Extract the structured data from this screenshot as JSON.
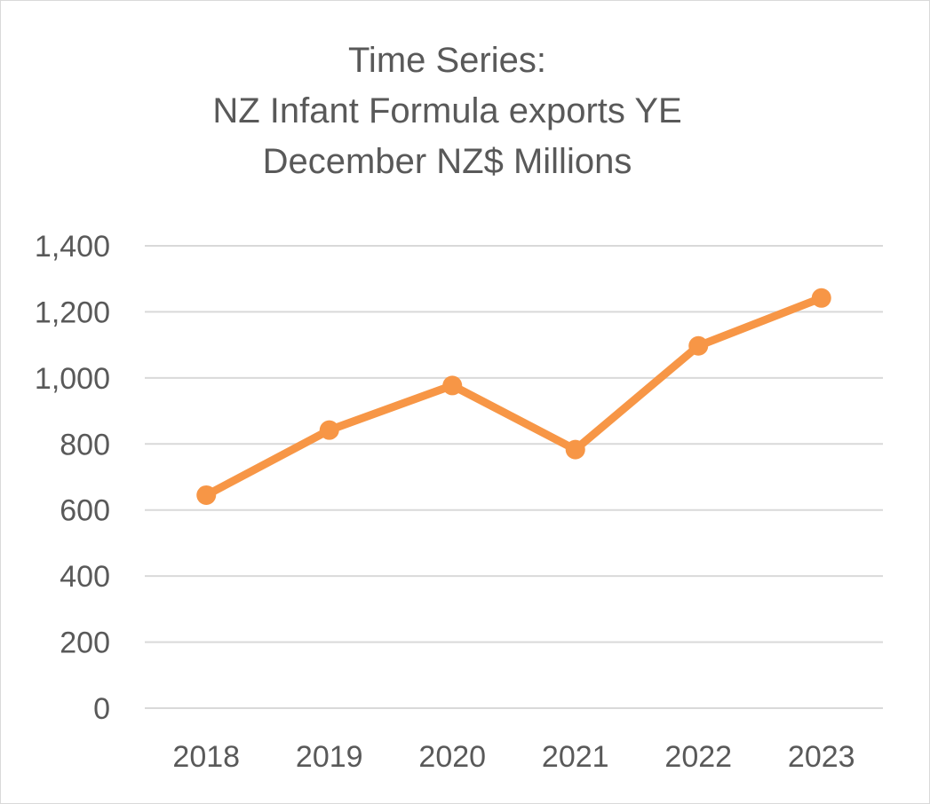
{
  "chart_data": {
    "type": "line",
    "title": [
      "Time Series:",
      "NZ Infant Formula exports YE",
      "December NZ$ Millions"
    ],
    "xlabel": "",
    "ylabel": "",
    "categories": [
      "2018",
      "2019",
      "2020",
      "2021",
      "2022",
      "2023"
    ],
    "series": [
      {
        "values": [
          645,
          842,
          977,
          783,
          1097,
          1242
        ],
        "color": "#F79646"
      }
    ],
    "ylim": [
      0,
      1400
    ],
    "yticks": [
      0,
      200,
      400,
      600,
      800,
      1000,
      1200,
      1400
    ],
    "ytick_labels": [
      "0",
      "200",
      "400",
      "600",
      "800",
      "1,000",
      "1,200",
      "1,400"
    ],
    "grid": true,
    "gridline_color": "#d9d9d9",
    "text_color": "#595959",
    "legend": "none",
    "markers": "circle"
  }
}
